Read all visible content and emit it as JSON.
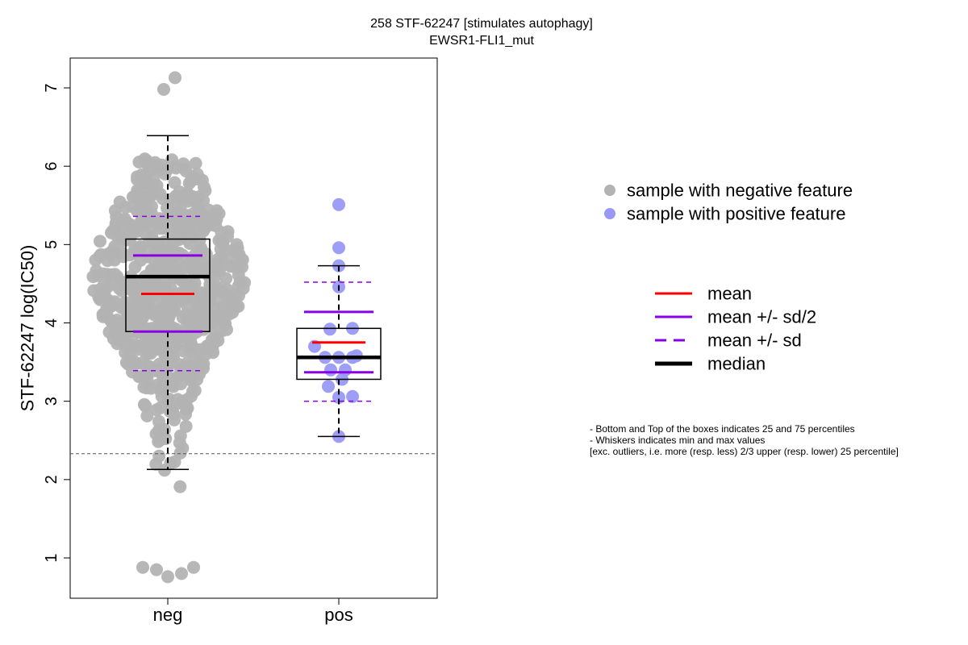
{
  "chart_data": {
    "type": "boxplot-beeswarm",
    "title": "258 STF-62247 [stimulates autophagy]",
    "subtitle": "EWSR1-FLI1_mut",
    "xlabel": "",
    "ylabel": "STF-62247 log(IC50)",
    "categories": [
      "neg",
      "pos"
    ],
    "yticks": [
      1,
      2,
      3,
      4,
      5,
      6,
      7
    ],
    "ylim": [
      0.5,
      7.4
    ],
    "threshold_line": 2.33,
    "groups": [
      {
        "name": "neg",
        "color": "#b3b3b3",
        "whisker_low": 2.13,
        "q1": 3.89,
        "median": 4.59,
        "q3": 5.07,
        "whisker_high": 6.39,
        "mean": 4.37,
        "mean_minus_half_sd": 3.89,
        "mean_plus_half_sd": 4.86,
        "mean_minus_sd": 3.39,
        "mean_plus_sd": 5.36,
        "n_points": 700,
        "outliers": [
          7.13,
          6.98,
          0.88,
          0.85,
          0.76,
          0.8,
          0.88
        ]
      },
      {
        "name": "pos",
        "color": "#9999f5",
        "whisker_low": 2.55,
        "q1": 3.28,
        "median": 3.56,
        "q3": 3.93,
        "whisker_high": 4.73,
        "mean": 3.75,
        "mean_minus_half_sd": 3.37,
        "mean_plus_half_sd": 4.14,
        "mean_minus_sd": 3.0,
        "mean_plus_sd": 4.52,
        "points": [
          5.51,
          4.96,
          4.73,
          4.46,
          3.93,
          3.92,
          3.7,
          3.58,
          3.56,
          3.56,
          3.56,
          3.4,
          3.4,
          3.28,
          3.19,
          3.06,
          3.05,
          2.55
        ]
      }
    ],
    "legend_points": [
      {
        "label": "sample with negative feature",
        "color": "#b3b3b3"
      },
      {
        "label": "sample with positive feature",
        "color": "#9999f5"
      }
    ],
    "legend_lines": [
      {
        "label": "mean",
        "color": "#ff0000",
        "style": "solid"
      },
      {
        "label": "mean +/- sd/2",
        "color": "#8a00e6",
        "style": "solid"
      },
      {
        "label": "mean +/- sd",
        "color": "#8a00e6",
        "style": "dashed"
      },
      {
        "label": "median",
        "color": "#000000",
        "style": "solid-thick"
      }
    ],
    "notes": [
      "- Bottom and Top of the boxes indicates 25 and 75 percentiles",
      "- Whiskers indicates min and max values",
      "[exc. outliers, i.e. more (resp. less) 2/3 upper (resp. lower) 25 percentile]"
    ]
  }
}
